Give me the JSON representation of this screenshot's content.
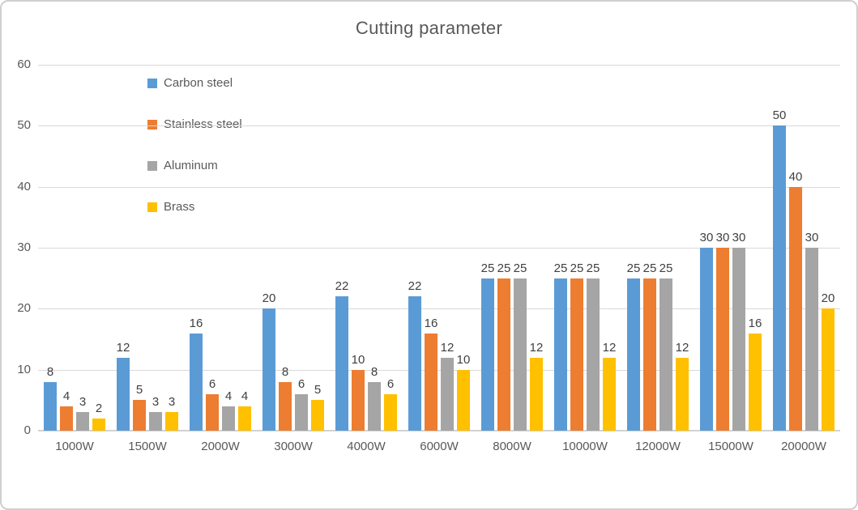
{
  "chart_data": {
    "type": "bar",
    "title": "Cutting parameter",
    "categories": [
      "1000W",
      "1500W",
      "2000W",
      "3000W",
      "4000W",
      "6000W",
      "8000W",
      "10000W",
      "12000W",
      "15000W",
      "20000W"
    ],
    "series": [
      {
        "name": "Carbon steel",
        "color": "#5B9BD5",
        "values": [
          8,
          12,
          16,
          20,
          22,
          22,
          25,
          25,
          25,
          30,
          50
        ]
      },
      {
        "name": "Stainless steel",
        "color": "#ED7D31",
        "values": [
          4,
          5,
          6,
          8,
          10,
          16,
          25,
          25,
          25,
          30,
          40
        ]
      },
      {
        "name": "Aluminum",
        "color": "#A5A5A5",
        "values": [
          3,
          3,
          4,
          6,
          8,
          12,
          25,
          25,
          25,
          30,
          30
        ]
      },
      {
        "name": "Brass",
        "color": "#FFC000",
        "values": [
          2,
          3,
          4,
          5,
          6,
          10,
          12,
          12,
          12,
          16,
          20
        ]
      }
    ],
    "xlabel": "",
    "ylabel": "",
    "ylim": [
      0,
      60
    ],
    "yticks": [
      0,
      10,
      20,
      30,
      40,
      50,
      60
    ],
    "grid": true,
    "data_labels": true,
    "legend_position": "upper-left-vertical"
  },
  "styles": {
    "background": "#FFFFFF",
    "frame_border_color": "#CFCFCF",
    "title_color": "#595959",
    "axis_text_color": "#595959",
    "data_label_color": "#404040",
    "gridline_color": "#D9D9D9",
    "axisline_color": "#D2D2D2"
  }
}
